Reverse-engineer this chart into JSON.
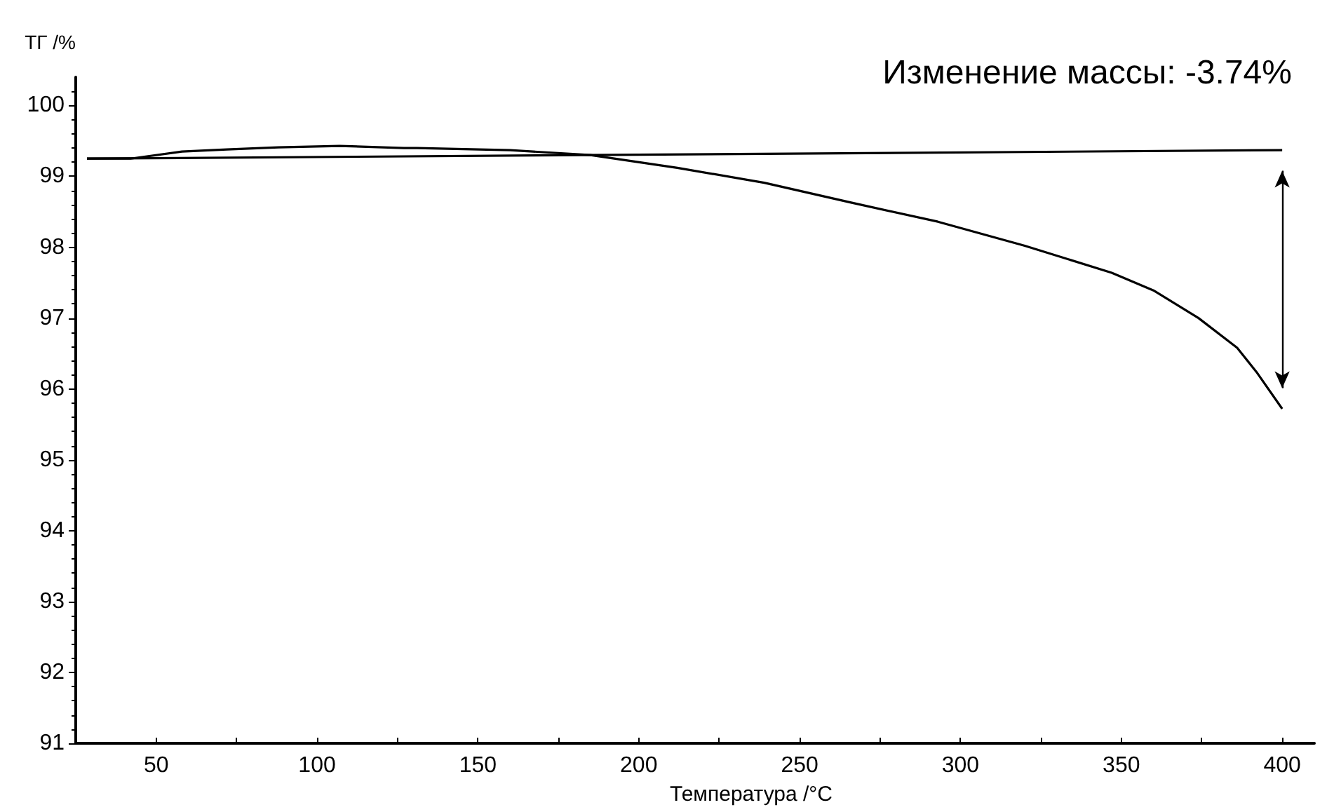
{
  "chart_data": {
    "type": "line",
    "xlabel": "Температура /°C",
    "ylabel": "ТГ /%",
    "annotations": [
      "Изменение массы: -3.74%"
    ],
    "xlim": [
      25,
      410
    ],
    "ylim": [
      91,
      100.4
    ],
    "xticks": [
      50,
      {
        "value": 75,
        "label": null
      },
      100,
      {
        "value": 125,
        "label": null
      },
      150,
      {
        "value": 175,
        "label": null
      },
      200,
      {
        "value": 225,
        "label": null
      },
      250,
      {
        "value": 275,
        "label": null
      },
      300,
      {
        "value": 325,
        "label": null
      },
      350,
      {
        "value": 375,
        "label": null
      },
      400
    ],
    "yticks": [
      91,
      92,
      93,
      94,
      95,
      96,
      97,
      98,
      99,
      100
    ],
    "grid": false,
    "marker": "none",
    "line_style": "solid",
    "series": [
      {
        "color": "#000000",
        "x": [
          28.5,
          42,
          58,
          72,
          88,
          107,
          127,
          131,
          160,
          185,
          212,
          239,
          266,
          293,
          320,
          347,
          360,
          374,
          386,
          392,
          400
        ],
        "values": [
          99.25,
          99.25,
          99.35,
          99.38,
          99.41,
          99.43,
          99.4,
          99.4,
          99.37,
          99.3,
          99.12,
          98.91,
          98.63,
          98.36,
          98.02,
          97.64,
          97.39,
          97.0,
          96.58,
          96.24,
          95.72
        ]
      },
      {
        "color": "#000000",
        "x": [
          28.5,
          400
        ],
        "values": [
          99.25,
          99.37
        ]
      }
    ]
  }
}
